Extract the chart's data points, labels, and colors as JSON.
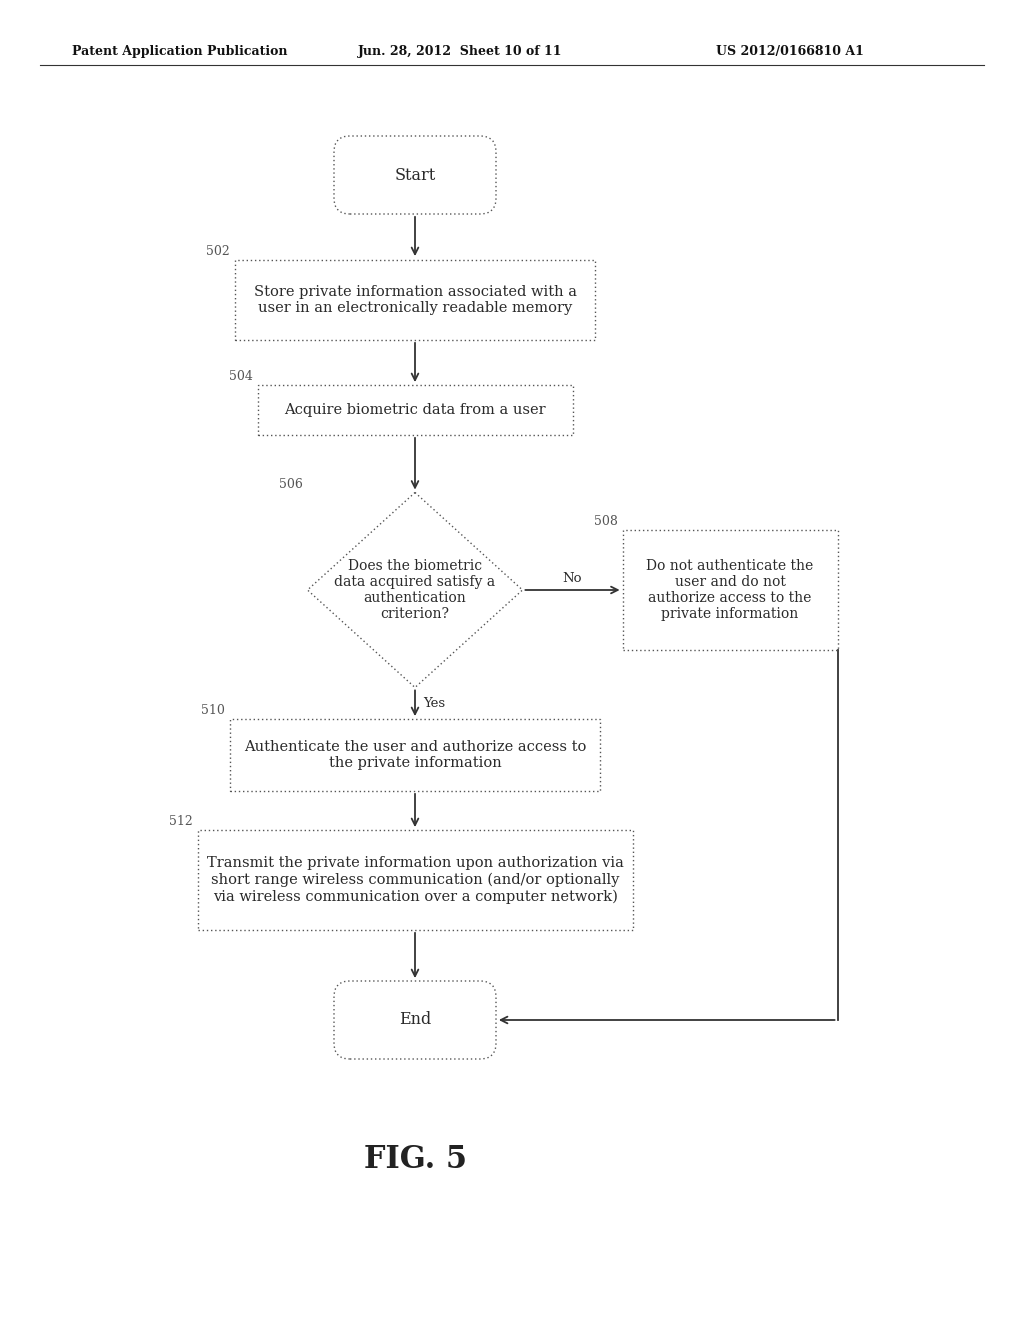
{
  "bg_color": "#ffffff",
  "header_left": "Patent Application Publication",
  "header_mid": "Jun. 28, 2012  Sheet 10 of 11",
  "header_right": "US 2012/0166810 A1",
  "fig_label": "FIG. 5",
  "edge_color": "#555555",
  "text_color": "#2a2a2a",
  "arrow_color": "#333333",
  "label_color": "#555555",
  "line_dotted": [
    1,
    2
  ],
  "start_text": "Start",
  "end_text": "End",
  "box502_label": "502",
  "box502_text": "Store private information associated with a\nuser in an electronically readable memory",
  "box504_label": "504",
  "box504_text": "Acquire biometric data from a user",
  "diamond506_label": "506",
  "diamond506_text": "Does the biometric\ndata acquired satisfy a\nauthentication\ncriterion?",
  "box508_label": "508",
  "box508_text": "Do not authenticate the\nuser and do not\nauthorize access to the\nprivate information",
  "box510_label": "510",
  "box510_text": "Authenticate the user and authorize access to\nthe private information",
  "box512_label": "512",
  "box512_text": "Transmit the private information upon authorization via\nshort range wireless communication (and/or optionally\nvia wireless communication over a computer network)",
  "no_label": "No",
  "yes_label": "Yes"
}
